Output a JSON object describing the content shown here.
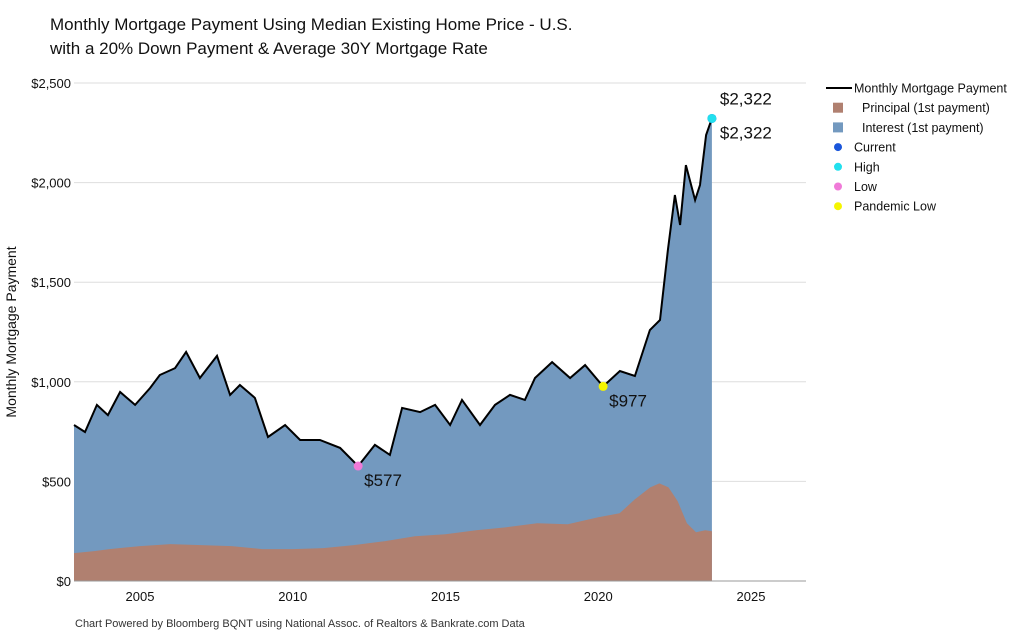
{
  "chart_data": {
    "type": "area",
    "title": "Monthly Mortgage Payment Using Median Existing Home Price - U.S.",
    "subtitle": "with a 20% Down Payment & Average 30Y Mortgage Rate",
    "ylabel": "Monthly Mortgage Payment",
    "xlabel": "",
    "footer": "Chart Powered by Bloomberg BQNT using National Assoc. of Realtors & Bankrate.com Data",
    "xlim": [
      2002.84,
      2026.8
    ],
    "ylim": [
      0,
      2500
    ],
    "x_ticks": [
      "2005",
      "2010",
      "2015",
      "2020",
      "2025"
    ],
    "x_tick_values": [
      2005,
      2010,
      2015,
      2020,
      2025
    ],
    "y_ticks": [
      "$0",
      "$500",
      "$1,000",
      "$1,500",
      "$2,000",
      "$2,500"
    ],
    "y_tick_values": [
      0,
      500,
      1000,
      1500,
      2000,
      2500
    ],
    "grid": true,
    "legend_position": "right",
    "colors": {
      "payment": "#000000",
      "principal": "#b08070",
      "interest": "#7399bf",
      "current": "#1a56db",
      "high": "#22e0ee",
      "low": "#f07ad8",
      "pandemic_low": "#f5f500"
    },
    "legend": [
      {
        "label": "Monthly Mortgage Payment",
        "kind": "line",
        "color_key": "payment"
      },
      {
        "label": "Principal (1st payment)",
        "kind": "square",
        "color_key": "principal"
      },
      {
        "label": "Interest (1st payment)",
        "kind": "square",
        "color_key": "interest"
      },
      {
        "label": "Current",
        "kind": "dot",
        "color_key": "current"
      },
      {
        "label": "High",
        "kind": "dot",
        "color_key": "high"
      },
      {
        "label": "Low",
        "kind": "dot",
        "color_key": "low"
      },
      {
        "label": "Pandemic Low",
        "kind": "dot",
        "color_key": "pandemic_low"
      }
    ],
    "series": [
      {
        "name": "Monthly Mortgage Payment",
        "x": [
          2002.84,
          2003.2,
          2003.59,
          2003.95,
          2004.35,
          2004.84,
          2005.33,
          2005.65,
          2006.15,
          2006.51,
          2006.96,
          2007.52,
          2007.95,
          2008.27,
          2008.76,
          2009.19,
          2009.75,
          2010.24,
          2010.89,
          2011.55,
          2012.14,
          2012.69,
          2013.18,
          2013.58,
          2014.17,
          2014.66,
          2015.15,
          2015.54,
          2016.13,
          2016.62,
          2017.11,
          2017.6,
          2017.93,
          2018.49,
          2019.08,
          2019.57,
          2020.16,
          2020.71,
          2021.2,
          2021.69,
          2022.02,
          2022.28,
          2022.51,
          2022.68,
          2022.87,
          2023.17,
          2023.33,
          2023.53,
          2023.72
        ],
        "y": [
          783,
          748,
          884,
          833,
          949,
          884,
          969,
          1034,
          1069,
          1150,
          1019,
          1130,
          934,
          984,
          919,
          723,
          783,
          708,
          708,
          668,
          577,
          683,
          633,
          869,
          848,
          884,
          783,
          909,
          783,
          884,
          934,
          909,
          1019,
          1099,
          1019,
          1084,
          977,
          1054,
          1029,
          1260,
          1310,
          1662,
          1938,
          1787,
          2088,
          1912,
          1988,
          2239,
          2322
        ]
      },
      {
        "name": "Principal (1st payment)",
        "x": [
          2002.84,
          2003.5,
          2004,
          2005,
          2006,
          2007,
          2008,
          2009,
          2010,
          2011,
          2012,
          2013,
          2014,
          2015,
          2016,
          2017,
          2018,
          2019,
          2020,
          2020.7,
          2021.2,
          2021.7,
          2022.0,
          2022.3,
          2022.6,
          2022.9,
          2023.2,
          2023.5,
          2023.72
        ],
        "y": [
          140,
          150,
          160,
          175,
          185,
          180,
          175,
          160,
          160,
          165,
          180,
          200,
          225,
          235,
          255,
          270,
          290,
          285,
          320,
          340,
          410,
          470,
          490,
          470,
          400,
          290,
          245,
          255,
          250
        ]
      },
      {
        "name": "Interest (1st payment)",
        "note_fill": "area between principal and monthly payment"
      }
    ],
    "markers": [
      {
        "name": "Current",
        "x": 2023.72,
        "y": 2322,
        "label": "$2,322",
        "color_key": "current"
      },
      {
        "name": "High",
        "x": 2023.72,
        "y": 2322,
        "label": "$2,322",
        "color_key": "high"
      },
      {
        "name": "Low",
        "x": 2012.14,
        "y": 577,
        "label": "$577",
        "color_key": "low"
      },
      {
        "name": "Pandemic Low",
        "x": 2020.16,
        "y": 977,
        "label": "$977",
        "color_key": "pandemic_low"
      }
    ]
  }
}
